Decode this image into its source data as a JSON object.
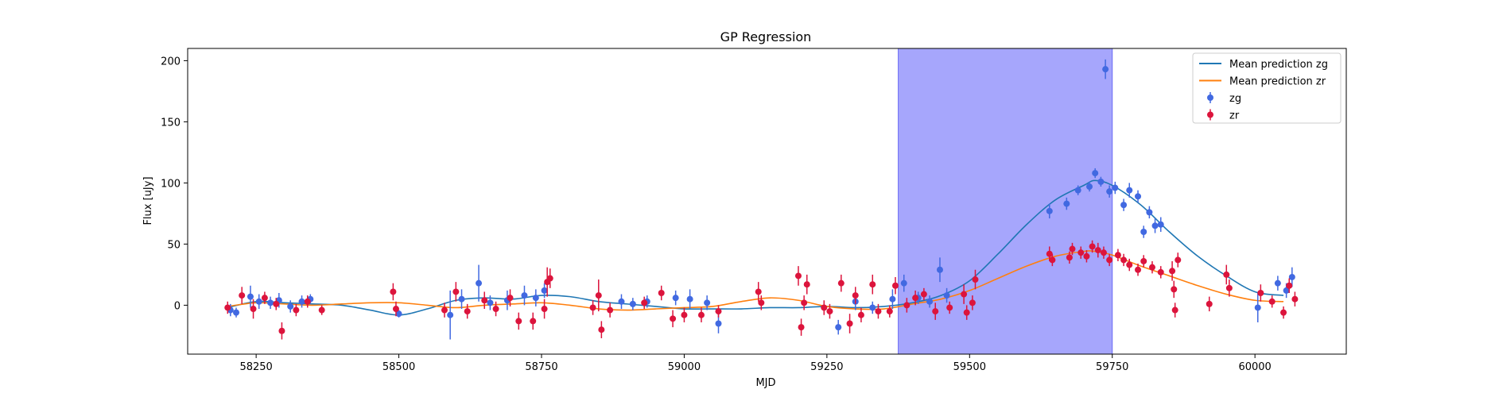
{
  "chart_data": {
    "type": "scatter",
    "title": "GP Regression",
    "xlabel": "MJD",
    "ylabel": "Flux [uJy]",
    "xlim": [
      58130,
      60160
    ],
    "ylim": [
      -40,
      210
    ],
    "xticks": [
      58250,
      58500,
      58750,
      59000,
      59250,
      59500,
      59750,
      60000
    ],
    "yticks": [
      0,
      50,
      100,
      150,
      200
    ],
    "grid": false,
    "legend_position": "top-right",
    "shaded_region": {
      "x0": 59375,
      "x1": 59750,
      "color": "#a6a6fc"
    },
    "colors": {
      "zg_line": "#1f77b4",
      "zr_line": "#ff7f0e",
      "zg_points": "#4169e1",
      "zr_points": "#dc143c"
    },
    "legend": [
      {
        "label": "Mean prediction zg",
        "kind": "line",
        "color": "#1f77b4"
      },
      {
        "label": "Mean prediction zr",
        "kind": "line",
        "color": "#ff7f0e"
      },
      {
        "label": "zg",
        "kind": "errorbar",
        "color": "#4169e1"
      },
      {
        "label": "zr",
        "kind": "errorbar",
        "color": "#dc143c"
      }
    ],
    "lines": [
      {
        "name": "Mean prediction zg",
        "color": "#1f77b4",
        "x": [
          58200,
          58250,
          58300,
          58350,
          58400,
          58450,
          58500,
          58550,
          58600,
          58650,
          58700,
          58750,
          58800,
          58850,
          58900,
          58950,
          59000,
          59050,
          59100,
          59150,
          59200,
          59250,
          59300,
          59350,
          59400,
          59450,
          59500,
          59550,
          59600,
          59650,
          59700,
          59720,
          59750,
          59800,
          59850,
          59900,
          59950,
          60000,
          60050
        ],
        "y": [
          -2,
          3,
          2,
          1,
          0,
          -4,
          -8,
          -3,
          4,
          6,
          5,
          8,
          7,
          3,
          1,
          -1,
          -3,
          -3,
          -3,
          -2,
          -2,
          -1,
          -2,
          -1,
          2,
          8,
          20,
          42,
          66,
          86,
          98,
          102,
          98,
          82,
          60,
          40,
          24,
          11,
          8
        ]
      },
      {
        "name": "Mean prediction zr",
        "color": "#ff7f0e",
        "x": [
          58200,
          58250,
          58300,
          58350,
          58400,
          58450,
          58500,
          58550,
          58600,
          58650,
          58700,
          58750,
          58800,
          58850,
          58900,
          58950,
          59000,
          59050,
          59100,
          59150,
          59200,
          59250,
          59300,
          59350,
          59400,
          59450,
          59500,
          59550,
          59600,
          59650,
          59700,
          59720,
          59750,
          59800,
          59850,
          59900,
          59950,
          60000,
          60050
        ],
        "y": [
          -1,
          2,
          1,
          0,
          1,
          2,
          2,
          0,
          -2,
          0,
          1,
          2,
          0,
          -3,
          -4,
          -3,
          -2,
          -1,
          3,
          6,
          4,
          -1,
          -3,
          -3,
          1,
          5,
          12,
          22,
          32,
          40,
          44,
          44,
          41,
          32,
          24,
          16,
          9,
          4,
          3
        ]
      }
    ],
    "series": [
      {
        "name": "zg",
        "color": "#4169e1",
        "points": [
          {
            "x": 58205,
            "y": -4,
            "err": 5
          },
          {
            "x": 58215,
            "y": -6,
            "err": 4
          },
          {
            "x": 58240,
            "y": 7,
            "err": 9
          },
          {
            "x": 58255,
            "y": 3,
            "err": 6
          },
          {
            "x": 58275,
            "y": 2,
            "err": 5
          },
          {
            "x": 58290,
            "y": 4,
            "err": 6
          },
          {
            "x": 58310,
            "y": -1,
            "err": 5
          },
          {
            "x": 58330,
            "y": 3,
            "err": 5
          },
          {
            "x": 58345,
            "y": 5,
            "err": 4
          },
          {
            "x": 58500,
            "y": -7,
            "err": 3
          },
          {
            "x": 58590,
            "y": -8,
            "err": 20
          },
          {
            "x": 58610,
            "y": 5,
            "err": 8
          },
          {
            "x": 58640,
            "y": 18,
            "err": 15
          },
          {
            "x": 58660,
            "y": 2,
            "err": 6
          },
          {
            "x": 58690,
            "y": 4,
            "err": 8
          },
          {
            "x": 58720,
            "y": 8,
            "err": 8
          },
          {
            "x": 58740,
            "y": 6,
            "err": 7
          },
          {
            "x": 58755,
            "y": 12,
            "err": 6
          },
          {
            "x": 58890,
            "y": 3,
            "err": 6
          },
          {
            "x": 58910,
            "y": 1,
            "err": 5
          },
          {
            "x": 58935,
            "y": 3,
            "err": 5
          },
          {
            "x": 58985,
            "y": 6,
            "err": 6
          },
          {
            "x": 59010,
            "y": 5,
            "err": 8
          },
          {
            "x": 59040,
            "y": 2,
            "err": 6
          },
          {
            "x": 59060,
            "y": -15,
            "err": 8
          },
          {
            "x": 59270,
            "y": -18,
            "err": 6
          },
          {
            "x": 59300,
            "y": 3,
            "err": 7
          },
          {
            "x": 59330,
            "y": -2,
            "err": 5
          },
          {
            "x": 59365,
            "y": 5,
            "err": 8
          },
          {
            "x": 59385,
            "y": 18,
            "err": 7
          },
          {
            "x": 59410,
            "y": 6,
            "err": 5
          },
          {
            "x": 59430,
            "y": 3,
            "err": 5
          },
          {
            "x": 59448,
            "y": 29,
            "err": 10
          },
          {
            "x": 59460,
            "y": 8,
            "err": 6
          },
          {
            "x": 59640,
            "y": 77,
            "err": 6
          },
          {
            "x": 59670,
            "y": 83,
            "err": 5
          },
          {
            "x": 59690,
            "y": 94,
            "err": 4
          },
          {
            "x": 59710,
            "y": 97,
            "err": 4
          },
          {
            "x": 59720,
            "y": 108,
            "err": 4
          },
          {
            "x": 59730,
            "y": 101,
            "err": 4
          },
          {
            "x": 59738,
            "y": 193,
            "err": 8
          },
          {
            "x": 59745,
            "y": 93,
            "err": 5
          },
          {
            "x": 59755,
            "y": 96,
            "err": 5
          },
          {
            "x": 59770,
            "y": 82,
            "err": 5
          },
          {
            "x": 59780,
            "y": 94,
            "err": 6
          },
          {
            "x": 59795,
            "y": 89,
            "err": 5
          },
          {
            "x": 59805,
            "y": 60,
            "err": 5
          },
          {
            "x": 59815,
            "y": 76,
            "err": 5
          },
          {
            "x": 59825,
            "y": 65,
            "err": 6
          },
          {
            "x": 59835,
            "y": 66,
            "err": 6
          },
          {
            "x": 60005,
            "y": -2,
            "err": 12
          },
          {
            "x": 60040,
            "y": 18,
            "err": 6
          },
          {
            "x": 60055,
            "y": 12,
            "err": 6
          },
          {
            "x": 60065,
            "y": 23,
            "err": 8
          }
        ]
      },
      {
        "name": "zr",
        "color": "#dc143c",
        "points": [
          {
            "x": 58200,
            "y": -2,
            "err": 5
          },
          {
            "x": 58225,
            "y": 8,
            "err": 7
          },
          {
            "x": 58245,
            "y": -3,
            "err": 8
          },
          {
            "x": 58265,
            "y": 6,
            "err": 5
          },
          {
            "x": 58285,
            "y": 1,
            "err": 5
          },
          {
            "x": 58295,
            "y": -21,
            "err": 7
          },
          {
            "x": 58320,
            "y": -4,
            "err": 5
          },
          {
            "x": 58340,
            "y": 3,
            "err": 5
          },
          {
            "x": 58365,
            "y": -4,
            "err": 4
          },
          {
            "x": 58490,
            "y": 11,
            "err": 7
          },
          {
            "x": 58495,
            "y": -3,
            "err": 6
          },
          {
            "x": 58580,
            "y": -4,
            "err": 6
          },
          {
            "x": 58600,
            "y": 11,
            "err": 8
          },
          {
            "x": 58620,
            "y": -5,
            "err": 6
          },
          {
            "x": 58650,
            "y": 4,
            "err": 7
          },
          {
            "x": 58670,
            "y": -3,
            "err": 6
          },
          {
            "x": 58695,
            "y": 6,
            "err": 7
          },
          {
            "x": 58710,
            "y": -13,
            "err": 7
          },
          {
            "x": 58735,
            "y": -13,
            "err": 7
          },
          {
            "x": 58755,
            "y": -3,
            "err": 8
          },
          {
            "x": 58760,
            "y": 19,
            "err": 12
          },
          {
            "x": 58765,
            "y": 22,
            "err": 8
          },
          {
            "x": 58840,
            "y": -2,
            "err": 6
          },
          {
            "x": 58850,
            "y": 8,
            "err": 13
          },
          {
            "x": 58855,
            "y": -20,
            "err": 7
          },
          {
            "x": 58870,
            "y": -4,
            "err": 6
          },
          {
            "x": 58930,
            "y": 2,
            "err": 5
          },
          {
            "x": 58960,
            "y": 10,
            "err": 6
          },
          {
            "x": 58980,
            "y": -11,
            "err": 7
          },
          {
            "x": 59000,
            "y": -8,
            "err": 6
          },
          {
            "x": 59030,
            "y": -8,
            "err": 6
          },
          {
            "x": 59060,
            "y": -5,
            "err": 5
          },
          {
            "x": 59130,
            "y": 11,
            "err": 8
          },
          {
            "x": 59135,
            "y": 2,
            "err": 6
          },
          {
            "x": 59200,
            "y": 24,
            "err": 8
          },
          {
            "x": 59205,
            "y": -18,
            "err": 7
          },
          {
            "x": 59210,
            "y": 2,
            "err": 6
          },
          {
            "x": 59215,
            "y": 17,
            "err": 8
          },
          {
            "x": 59245,
            "y": -2,
            "err": 6
          },
          {
            "x": 59255,
            "y": -5,
            "err": 6
          },
          {
            "x": 59275,
            "y": 18,
            "err": 7
          },
          {
            "x": 59290,
            "y": -15,
            "err": 8
          },
          {
            "x": 59300,
            "y": 8,
            "err": 7
          },
          {
            "x": 59310,
            "y": -8,
            "err": 6
          },
          {
            "x": 59330,
            "y": 17,
            "err": 8
          },
          {
            "x": 59340,
            "y": -5,
            "err": 6
          },
          {
            "x": 59360,
            "y": -5,
            "err": 5
          },
          {
            "x": 59370,
            "y": 16,
            "err": 7
          },
          {
            "x": 59390,
            "y": 0,
            "err": 6
          },
          {
            "x": 59405,
            "y": 6,
            "err": 6
          },
          {
            "x": 59420,
            "y": 9,
            "err": 5
          },
          {
            "x": 59440,
            "y": -5,
            "err": 7
          },
          {
            "x": 59465,
            "y": -2,
            "err": 5
          },
          {
            "x": 59490,
            "y": 9,
            "err": 8
          },
          {
            "x": 59495,
            "y": -6,
            "err": 6
          },
          {
            "x": 59505,
            "y": 2,
            "err": 6
          },
          {
            "x": 59510,
            "y": 21,
            "err": 8
          },
          {
            "x": 59640,
            "y": 42,
            "err": 6
          },
          {
            "x": 59645,
            "y": 37,
            "err": 5
          },
          {
            "x": 59675,
            "y": 39,
            "err": 5
          },
          {
            "x": 59680,
            "y": 46,
            "err": 5
          },
          {
            "x": 59695,
            "y": 43,
            "err": 5
          },
          {
            "x": 59705,
            "y": 40,
            "err": 5
          },
          {
            "x": 59715,
            "y": 48,
            "err": 5
          },
          {
            "x": 59725,
            "y": 45,
            "err": 6
          },
          {
            "x": 59735,
            "y": 43,
            "err": 5
          },
          {
            "x": 59745,
            "y": 37,
            "err": 5
          },
          {
            "x": 59760,
            "y": 41,
            "err": 5
          },
          {
            "x": 59770,
            "y": 37,
            "err": 5
          },
          {
            "x": 59780,
            "y": 33,
            "err": 5
          },
          {
            "x": 59795,
            "y": 29,
            "err": 5
          },
          {
            "x": 59805,
            "y": 36,
            "err": 5
          },
          {
            "x": 59820,
            "y": 31,
            "err": 5
          },
          {
            "x": 59835,
            "y": 27,
            "err": 5
          },
          {
            "x": 59855,
            "y": 28,
            "err": 8
          },
          {
            "x": 59858,
            "y": 13,
            "err": 7
          },
          {
            "x": 59860,
            "y": -4,
            "err": 6
          },
          {
            "x": 59865,
            "y": 37,
            "err": 6
          },
          {
            "x": 59920,
            "y": 1,
            "err": 6
          },
          {
            "x": 59950,
            "y": 25,
            "err": 8
          },
          {
            "x": 59955,
            "y": 14,
            "err": 7
          },
          {
            "x": 60010,
            "y": 10,
            "err": 7
          },
          {
            "x": 60030,
            "y": 3,
            "err": 5
          },
          {
            "x": 60050,
            "y": -6,
            "err": 5
          },
          {
            "x": 60060,
            "y": 16,
            "err": 6
          },
          {
            "x": 60070,
            "y": 5,
            "err": 6
          }
        ]
      }
    ]
  }
}
